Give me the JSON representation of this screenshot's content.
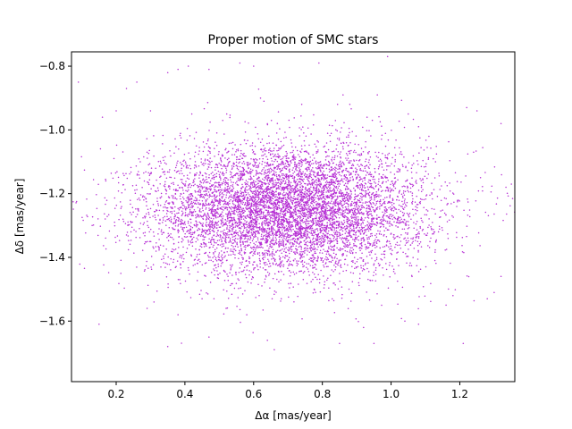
{
  "chart_data": {
    "type": "scatter",
    "title": "Proper motion of SMC stars",
    "xlabel": "Δα [mas/year]",
    "ylabel": "Δδ [mas/year]",
    "xlim": [
      0.07,
      1.36
    ],
    "ylim": [
      -1.79,
      -0.755
    ],
    "xticks": [
      0.2,
      0.4,
      0.6,
      0.8,
      1.0,
      1.2
    ],
    "xtick_labels": [
      "0.2",
      "0.4",
      "0.6",
      "0.8",
      "1.0",
      "1.2"
    ],
    "yticks": [
      -1.6,
      -1.4,
      -1.2,
      -1.0,
      -0.8
    ],
    "ytick_labels": [
      "−1.6",
      "−1.4",
      "−1.2",
      "−1.0",
      "−0.8"
    ],
    "grid": false,
    "marker_color": "#b62fd4",
    "series": [
      {
        "name": "",
        "distribution": {
          "center_x": 0.7,
          "center_y": -1.25,
          "sigma_x": 0.2,
          "sigma_y": 0.1,
          "count": 7500
        },
        "outliers": [
          [
            0.09,
            -0.85
          ],
          [
            0.16,
            -0.96
          ],
          [
            0.23,
            -0.87
          ],
          [
            0.26,
            -0.85
          ],
          [
            0.35,
            -0.82
          ],
          [
            0.38,
            -0.81
          ],
          [
            0.41,
            -0.8
          ],
          [
            0.47,
            -0.81
          ],
          [
            0.56,
            -0.79
          ],
          [
            0.6,
            -0.8
          ],
          [
            0.62,
            -0.9
          ],
          [
            0.63,
            -0.91
          ],
          [
            0.79,
            -0.79
          ],
          [
            0.86,
            -0.89
          ],
          [
            0.96,
            -0.89
          ],
          [
            0.99,
            -0.77
          ],
          [
            1.05,
            -0.95
          ],
          [
            1.08,
            -0.99
          ],
          [
            1.22,
            -0.93
          ],
          [
            1.25,
            -0.94
          ],
          [
            1.32,
            -0.98
          ],
          [
            1.35,
            -1.17
          ],
          [
            0.13,
            -1.3
          ],
          [
            0.15,
            -1.61
          ],
          [
            0.17,
            -1.16
          ],
          [
            0.22,
            -1.28
          ],
          [
            0.29,
            -1.56
          ],
          [
            0.31,
            -1.54
          ],
          [
            0.35,
            -1.68
          ],
          [
            0.47,
            -1.65
          ],
          [
            0.58,
            -1.58
          ],
          [
            0.64,
            -1.66
          ],
          [
            0.66,
            -1.69
          ],
          [
            0.85,
            -1.67
          ],
          [
            0.92,
            -1.62
          ],
          [
            0.95,
            -1.67
          ],
          [
            1.04,
            -1.6
          ],
          [
            1.08,
            -1.61
          ],
          [
            1.21,
            -1.67
          ],
          [
            1.28,
            -1.53
          ],
          [
            1.3,
            -1.51
          ],
          [
            1.32,
            -1.46
          ],
          [
            1.16,
            -1.55
          ],
          [
            0.45,
            -1.53
          ],
          [
            0.52,
            -1.56
          ],
          [
            0.27,
            -1.1
          ],
          [
            0.29,
            -1.07
          ],
          [
            0.33,
            -1.43
          ],
          [
            0.38,
            -1.58
          ],
          [
            1.26,
            -1.15
          ],
          [
            1.24,
            -1.07
          ],
          [
            1.11,
            -1.02
          ],
          [
            0.2,
            -0.94
          ],
          [
            0.42,
            -0.95
          ],
          [
            0.51,
            -0.97
          ],
          [
            0.88,
            -0.92
          ],
          [
            0.93,
            -0.96
          ],
          [
            0.74,
            -0.92
          ],
          [
            0.3,
            -0.94
          ],
          [
            1.18,
            -1.52
          ]
        ]
      }
    ]
  }
}
